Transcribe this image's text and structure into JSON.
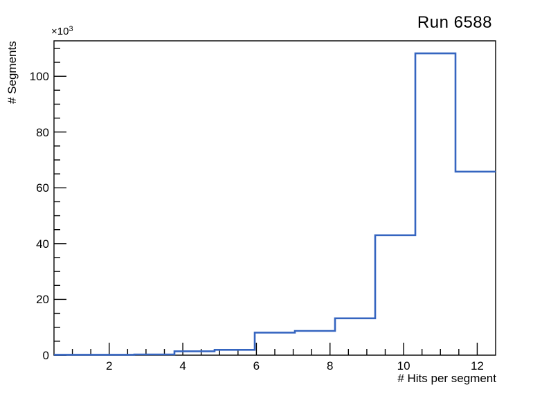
{
  "title": "Run 6588",
  "axes": {
    "y_label": "# Segments",
    "x_label": "# Hits per segment",
    "y_scale_base": "×10",
    "y_scale_exp": "3"
  },
  "chart_data": {
    "type": "bar",
    "subtype": "step-histogram",
    "title": "Run 6588",
    "xlabel": "# Hits per segment",
    "ylabel": "# Segments",
    "y_scale_factor": "values in units of 10^3",
    "xlim": [
      0.5,
      12.5
    ],
    "ylim": [
      0,
      112.7
    ],
    "n_bins": 11,
    "bin_edges": [
      0.5,
      1.591,
      2.682,
      3.773,
      4.864,
      5.955,
      7.045,
      8.136,
      9.227,
      10.318,
      11.409,
      12.5
    ],
    "bin_values_thousands": [
      0.15,
      0.15,
      0.25,
      1.4,
      1.9,
      8.1,
      8.7,
      13.2,
      43.0,
      108.2,
      65.8
    ],
    "x_major_ticks": [
      2,
      4,
      6,
      8,
      10,
      12
    ],
    "x_minor_step": 0.5,
    "y_major_ticks": [
      0,
      20,
      40,
      60,
      80,
      100
    ],
    "y_minor_step": 5,
    "grid": false,
    "legend": "none",
    "line_color": "#3565c0",
    "frame_color": "#000000",
    "background_color": "#ffffff"
  }
}
